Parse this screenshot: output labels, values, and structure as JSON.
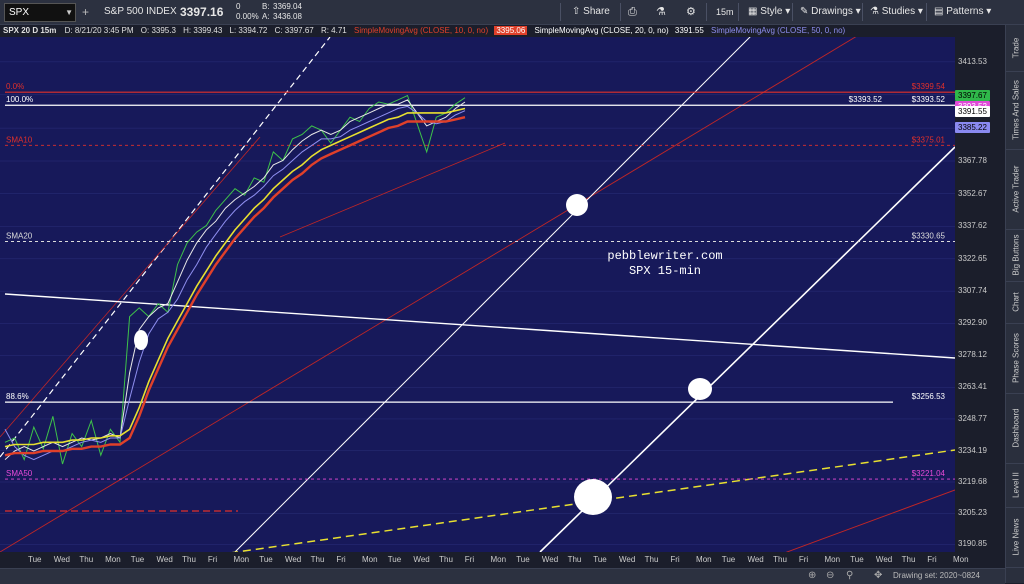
{
  "toolbar": {
    "symbol": "SPX",
    "name": "S&P 500 INDEX",
    "last": "3397.16",
    "change": "0",
    "change_pct": "0.00%",
    "bid_label": "B:",
    "bid": "3369.04",
    "ask_label": "A:",
    "ask": "3436.08",
    "share": "Share",
    "interval": "15m",
    "style": "Style",
    "drawings": "Drawings",
    "studies": "Studies",
    "patterns": "Patterns"
  },
  "infobar": {
    "title": "SPX 20 D 15m",
    "date": "D: 8/21/20 3:45 PM",
    "open": "O: 3395.3",
    "high": "H: 3399.43",
    "low": "L: 3394.72",
    "close": "C: 3397.67",
    "range": "R: 4.71",
    "sma10": "SimpleMovingAvg (CLOSE, 10, 0, no)",
    "sma10_val": "3395.06",
    "sma20": "SimpleMovingAvg (CLOSE, 20, 0, no)",
    "sma20_val": "3391.55",
    "sma50": "SimpleMovingAvg (CLOSE, 50, 0, no)",
    "colors": {
      "sma10": "#e0402a",
      "sma20": "#e8e8e8",
      "sma50": "#8f8ff0"
    }
  },
  "right_tabs": [
    "Trade",
    "Times And Sales",
    "Active Trader",
    "Big Buttons",
    "Chart",
    "Phase Scores",
    "Dashboard",
    "Level II",
    "Live News"
  ],
  "bottom": {
    "drawing_set": "Drawing set: 2020~0824"
  },
  "watermark": {
    "line1": "pebblewriter.com",
    "line2": "SPX 15-min"
  },
  "chart_data": {
    "type": "line",
    "ylim": [
      3180,
      3425
    ],
    "yticks": [
      3413.53,
      3398.34,
      3382.96,
      3367.78,
      3352.67,
      3337.62,
      3322.65,
      3307.74,
      3292.9,
      3278.12,
      3263.41,
      3248.77,
      3234.19,
      3219.68,
      3205.23,
      3190.85
    ],
    "xticks": [
      "Tue",
      "Wed",
      "Thu",
      "Mon",
      "Tue",
      "Wed",
      "Thu",
      "Fri",
      "Mon",
      "Tue",
      "Wed",
      "Thu",
      "Fri",
      "Mon",
      "Tue",
      "Wed",
      "Thu",
      "Fri",
      "Mon",
      "Tue",
      "Wed",
      "Thu",
      "Tue",
      "Wed",
      "Thu",
      "Fri",
      "Mon",
      "Tue",
      "Wed",
      "Thu",
      "Fri",
      "Mon",
      "Tue",
      "Wed",
      "Thu",
      "Fri",
      "Mon"
    ],
    "price_tags": [
      {
        "value": "3397.67",
        "bg": "#2fb84a",
        "fg": "#000000"
      },
      {
        "value": "3393.52",
        "bg": "#e04ad8",
        "fg": "#ffffff"
      },
      {
        "value": "3391.55",
        "bg": "#ffffff",
        "fg": "#000000"
      },
      {
        "value": "3385.22",
        "bg": "#8a8af0",
        "fg": "#000000"
      }
    ],
    "levels": [
      {
        "left": "0.0%",
        "right": "$3399.54",
        "value": 3399.54,
        "color": "#e0302a",
        "style": "solid"
      },
      {
        "left": "100.0%",
        "right": "$3393.52",
        "value": 3393.52,
        "color": "#ffffff",
        "style": "solid",
        "mid": "$3393.52"
      },
      {
        "left": "SMA10",
        "right": "$3375.01",
        "value": 3375.01,
        "color": "#e0302a",
        "style": "dashed"
      },
      {
        "left": "SMA20",
        "right": "$3330.65",
        "value": 3330.65,
        "color": "#dcdcdc",
        "style": "dashed"
      },
      {
        "left": "88.6%",
        "right": "$3256.53",
        "value": 3256.53,
        "color": "#ffffff",
        "style": "solid"
      },
      {
        "left": "SMA50",
        "right": "$3221.04",
        "value": 3221.04,
        "color": "#e84ad8",
        "style": "dashed"
      }
    ],
    "series": [
      {
        "values": [
          3238,
          3240,
          3230,
          3245,
          3235,
          3250,
          3228,
          3242,
          3236,
          3248,
          3232,
          3244,
          3238,
          3296,
          3300,
          3296,
          3302,
          3298,
          3320,
          3330,
          3335,
          3338,
          3345,
          3350,
          3355,
          3352,
          3360,
          3358,
          3372,
          3368,
          3378,
          3380,
          3384,
          3382,
          3376,
          3382,
          3388,
          3386,
          3392,
          3395,
          3394,
          3396,
          3398,
          3385,
          3372,
          3388,
          3390,
          3394,
          3397
        ]
      },
      {
        "values": [
          3230,
          3234,
          3236,
          3234,
          3236,
          3238,
          3236,
          3238,
          3240,
          3239,
          3240,
          3242,
          3240,
          3270,
          3290,
          3296,
          3300,
          3302,
          3312,
          3322,
          3330,
          3336,
          3340,
          3346,
          3350,
          3353,
          3356,
          3360,
          3366,
          3368,
          3373,
          3377,
          3380,
          3382,
          3380,
          3382,
          3386,
          3388,
          3390,
          3392,
          3394,
          3394,
          3396,
          3390,
          3384,
          3386,
          3388,
          3392,
          3395
        ]
      },
      {
        "values": [
          3244,
          3236,
          3232,
          3230,
          3232,
          3234,
          3234,
          3236,
          3238,
          3239,
          3238,
          3240,
          3240,
          3258,
          3275,
          3288,
          3295,
          3298,
          3304,
          3313,
          3320,
          3328,
          3334,
          3340,
          3345,
          3349,
          3352,
          3356,
          3361,
          3364,
          3368,
          3372,
          3375,
          3378,
          3378,
          3379,
          3382,
          3384,
          3386,
          3388,
          3390,
          3392,
          3393,
          3390,
          3386,
          3385,
          3386,
          3389,
          3391
        ]
      },
      {
        "values": [
          3232,
          3233,
          3233,
          3233,
          3234,
          3234,
          3234,
          3235,
          3235,
          3236,
          3236,
          3237,
          3237,
          3240,
          3250,
          3262,
          3272,
          3282,
          3290,
          3298,
          3306,
          3313,
          3320,
          3326,
          3332,
          3337,
          3342,
          3346,
          3351,
          3355,
          3359,
          3362,
          3366,
          3369,
          3371,
          3373,
          3375,
          3377,
          3379,
          3381,
          3383,
          3384,
          3386,
          3386,
          3386,
          3386,
          3386,
          3387,
          3388
        ]
      }
    ]
  }
}
